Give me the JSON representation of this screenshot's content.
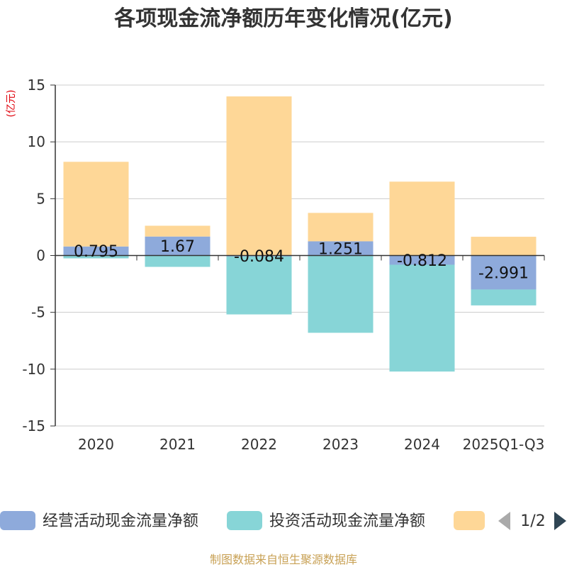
{
  "chart_data": {
    "type": "bar",
    "stacked": true,
    "title": "各项现金流净额历年变化情况(亿元)",
    "ylabel": "(亿元)",
    "ylim": [
      -15,
      15
    ],
    "yticks": [
      15,
      10,
      5,
      0,
      -5,
      -10,
      -15
    ],
    "categories": [
      "2020",
      "2021",
      "2022",
      "2023",
      "2024",
      "2025Q1-Q3"
    ],
    "series": [
      {
        "name": "经营活动现金流量净额",
        "color": "#8eaadb",
        "values": [
          0.795,
          1.67,
          -0.084,
          1.251,
          -0.812,
          -2.991
        ]
      },
      {
        "name": "投资活动现金流量净额",
        "color": "#87d5d7",
        "values": [
          -0.25,
          -1.0,
          -5.1,
          -6.8,
          -9.4,
          -1.4
        ]
      },
      {
        "name": "",
        "color": "#fed797",
        "values": [
          7.45,
          0.95,
          14.0,
          2.5,
          6.5,
          1.65
        ]
      }
    ],
    "data_labels": [
      "0.795",
      "1.67",
      "-0.084",
      "1.251",
      "-0.812",
      "-2.991"
    ],
    "legend": {
      "position": "bottom",
      "page_indicator": "1/2"
    }
  },
  "source_text": "制图数据来自恒生聚源数据库"
}
